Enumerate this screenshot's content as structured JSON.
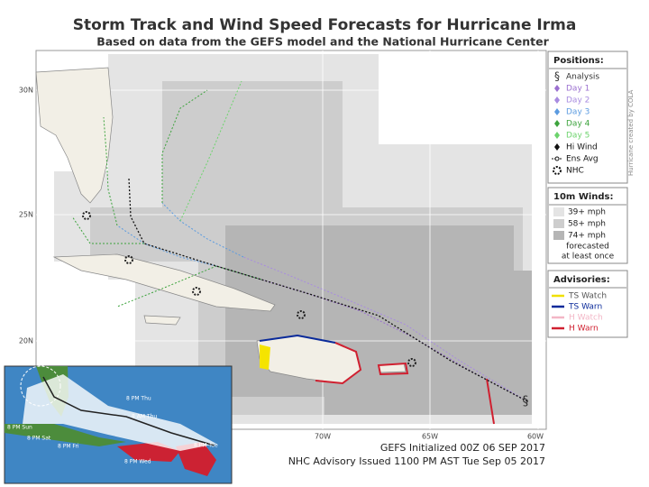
{
  "header": {
    "title": "Storm Track and Wind Speed Forecasts for Hurricane Irma",
    "subtitle": "Based on data from the GEFS model and the National Hurricane Center"
  },
  "map": {
    "lat_labels": [
      "30N",
      "25N",
      "20N"
    ],
    "lon_labels": [
      "70W",
      "65W",
      "60W"
    ],
    "credit": "Hurricane created by COLA"
  },
  "legend": {
    "positions": {
      "title": "Positions:",
      "items": [
        "Analysis",
        "Day 1",
        "Day 2",
        "Day 3",
        "Day 4",
        "Day 5",
        "Hi Wind",
        "Ens Avg",
        "NHC"
      ]
    },
    "winds": {
      "title": "10m Winds:",
      "items": [
        "39+ mph",
        "58+ mph",
        "74+ mph"
      ],
      "note": [
        "forecasted",
        "at least once"
      ]
    },
    "advisories": {
      "title": "Advisories:",
      "items": [
        "TS Watch",
        "TS Warn",
        "H Watch",
        "H Warn"
      ]
    }
  },
  "inset": {
    "labels": [
      "8 PM Thu",
      "8 AM Thu",
      "8 PM Sun",
      "8 PM Sat",
      "8 PM Fri",
      "8 PM Tue",
      "8 PM Wed"
    ]
  },
  "footer": {
    "lines": [
      "GEFS Initialized 00Z 06 SEP 2017",
      "NHC Advisory Issued 1100 PM AST Tue Sep 05 2017"
    ]
  }
}
